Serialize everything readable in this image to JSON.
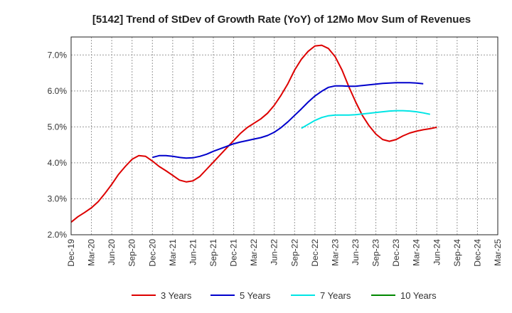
{
  "chart_data": {
    "type": "line",
    "title": "[5142]  Trend of StDev of Growth Rate (YoY) of 12Mo Mov Sum of Revenues",
    "xlabel": "",
    "ylabel": "",
    "ylim": [
      2.0,
      7.5
    ],
    "yticks": [
      2.0,
      3.0,
      4.0,
      5.0,
      6.0,
      7.0
    ],
    "ytick_labels": [
      "2.0%",
      "3.0%",
      "4.0%",
      "5.0%",
      "6.0%",
      "7.0%"
    ],
    "xticks": [
      "Dec-19",
      "Mar-20",
      "Jun-20",
      "Sep-20",
      "Dec-20",
      "Mar-21",
      "Jun-21",
      "Sep-21",
      "Dec-21",
      "Mar-22",
      "Jun-22",
      "Sep-22",
      "Dec-22",
      "Mar-23",
      "Jun-23",
      "Sep-23",
      "Dec-23",
      "Mar-24",
      "Jun-24",
      "Sep-24",
      "Dec-24",
      "Mar-25"
    ],
    "grid": true,
    "legend_position": "bottom",
    "series": [
      {
        "name": "3 Years",
        "color": "#dd0000",
        "start_index": 0,
        "values": [
          2.35,
          2.5,
          2.62,
          2.75,
          2.92,
          3.15,
          3.4,
          3.68,
          3.9,
          4.1,
          4.2,
          4.18,
          4.05,
          3.9,
          3.78,
          3.65,
          3.52,
          3.47,
          3.5,
          3.62,
          3.82,
          4.02,
          4.22,
          4.42,
          4.62,
          4.82,
          4.98,
          5.1,
          5.22,
          5.38,
          5.6,
          5.88,
          6.2,
          6.58,
          6.88,
          7.1,
          7.25,
          7.27,
          7.18,
          6.95,
          6.58,
          6.12,
          5.7,
          5.32,
          5.03,
          4.8,
          4.65,
          4.6,
          4.65,
          4.75,
          4.83,
          4.88,
          4.92,
          4.95,
          4.99
        ]
      },
      {
        "name": "5 Years",
        "color": "#0000cc",
        "start_index": 12,
        "values": [
          4.15,
          4.2,
          4.2,
          4.18,
          4.15,
          4.13,
          4.14,
          4.18,
          4.24,
          4.32,
          4.39,
          4.46,
          4.53,
          4.58,
          4.62,
          4.66,
          4.7,
          4.76,
          4.85,
          4.98,
          5.14,
          5.32,
          5.5,
          5.69,
          5.86,
          5.99,
          6.1,
          6.14,
          6.14,
          6.13,
          6.13,
          6.15,
          6.17,
          6.19,
          6.21,
          6.22,
          6.23,
          6.23,
          6.23,
          6.22,
          6.2
        ]
      },
      {
        "name": "7 Years",
        "color": "#00e5e5",
        "start_index": 34,
        "values": [
          4.96,
          5.07,
          5.18,
          5.26,
          5.31,
          5.33,
          5.33,
          5.33,
          5.34,
          5.36,
          5.38,
          5.4,
          5.42,
          5.44,
          5.45,
          5.45,
          5.44,
          5.42,
          5.39,
          5.35
        ]
      },
      {
        "name": "10 Years",
        "color": "#008800",
        "start_index": 0,
        "values": []
      }
    ]
  }
}
